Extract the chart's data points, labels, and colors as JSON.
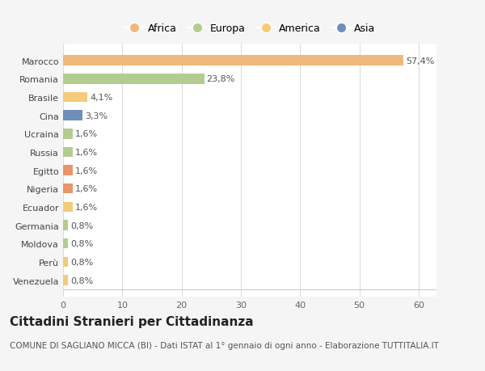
{
  "countries": [
    "Venezuela",
    "Perù",
    "Moldova",
    "Germania",
    "Ecuador",
    "Nigeria",
    "Egitto",
    "Russia",
    "Ucraina",
    "Cina",
    "Brasile",
    "Romania",
    "Marocco"
  ],
  "values": [
    0.8,
    0.8,
    0.8,
    0.8,
    1.6,
    1.6,
    1.6,
    1.6,
    1.6,
    3.3,
    4.1,
    23.8,
    57.4
  ],
  "labels": [
    "0,8%",
    "0,8%",
    "0,8%",
    "0,8%",
    "1,6%",
    "1,6%",
    "1,6%",
    "1,6%",
    "1,6%",
    "3,3%",
    "4,1%",
    "23,8%",
    "57,4%"
  ],
  "colors": [
    "#f5ca7a",
    "#f5ca7a",
    "#b3cc8f",
    "#b3cc8f",
    "#f5ca7a",
    "#e8956a",
    "#e8956a",
    "#b3cc8f",
    "#b3cc8f",
    "#6e8fba",
    "#f5ca7a",
    "#b3cc8f",
    "#f0b87a"
  ],
  "legend_labels": [
    "Africa",
    "Europa",
    "America",
    "Asia"
  ],
  "legend_colors": [
    "#f0b87a",
    "#b3cc8f",
    "#f5ca7a",
    "#6e8fba"
  ],
  "xlim": [
    0,
    63
  ],
  "xticks": [
    0,
    10,
    20,
    30,
    40,
    50,
    60
  ],
  "title": "Cittadini Stranieri per Cittadinanza",
  "subtitle": "COMUNE DI SAGLIANO MICCA (BI) - Dati ISTAT al 1° gennaio di ogni anno - Elaborazione TUTTITALIA.IT",
  "bg_color": "#f5f5f5",
  "plot_bg_color": "#ffffff",
  "grid_color": "#dddddd",
  "title_fontsize": 11,
  "subtitle_fontsize": 7.5,
  "label_fontsize": 8,
  "tick_fontsize": 8,
  "legend_fontsize": 9
}
